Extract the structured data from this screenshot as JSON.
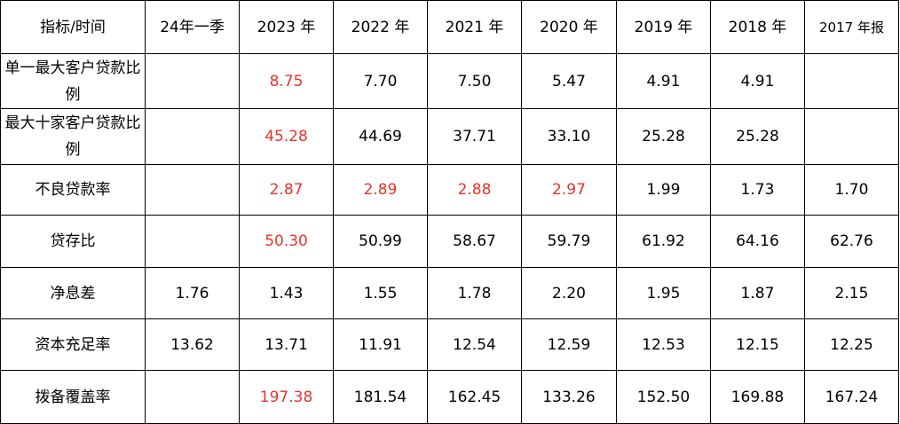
{
  "headers": [
    "指标/时间",
    "24年一季",
    "2023 年",
    "2022 年",
    "2021 年",
    "2020 年",
    "2019 年",
    "2018 年",
    "2017 年报"
  ],
  "colors": {
    "highlight": "#e8332b",
    "text": "#000000",
    "border": "#000000"
  },
  "rows": [
    {
      "label": "单一最大客户贷款比例",
      "cells": [
        {
          "v": "",
          "hl": false
        },
        {
          "v": "8.75",
          "hl": true
        },
        {
          "v": "7.70",
          "hl": false
        },
        {
          "v": "7.50",
          "hl": false
        },
        {
          "v": "5.47",
          "hl": false
        },
        {
          "v": "4.91",
          "hl": false
        },
        {
          "v": "4.91",
          "hl": false
        },
        {
          "v": "",
          "hl": false
        }
      ]
    },
    {
      "label": "最大十家客户贷款比例",
      "cells": [
        {
          "v": "",
          "hl": false
        },
        {
          "v": "45.28",
          "hl": true
        },
        {
          "v": "44.69",
          "hl": false
        },
        {
          "v": "37.71",
          "hl": false
        },
        {
          "v": "33.10",
          "hl": false
        },
        {
          "v": "25.28",
          "hl": false
        },
        {
          "v": "25.28",
          "hl": false
        },
        {
          "v": "",
          "hl": false
        }
      ]
    },
    {
      "label": "不良贷款率",
      "cells": [
        {
          "v": "",
          "hl": false
        },
        {
          "v": "2.87",
          "hl": true
        },
        {
          "v": "2.89",
          "hl": true
        },
        {
          "v": "2.88",
          "hl": true
        },
        {
          "v": "2.97",
          "hl": true
        },
        {
          "v": "1.99",
          "hl": false
        },
        {
          "v": "1.73",
          "hl": false
        },
        {
          "v": "1.70",
          "hl": false
        }
      ]
    },
    {
      "label": "贷存比",
      "cells": [
        {
          "v": "",
          "hl": false
        },
        {
          "v": "50.30",
          "hl": true
        },
        {
          "v": "50.99",
          "hl": false
        },
        {
          "v": "58.67",
          "hl": false
        },
        {
          "v": "59.79",
          "hl": false
        },
        {
          "v": "61.92",
          "hl": false
        },
        {
          "v": "64.16",
          "hl": false
        },
        {
          "v": "62.76",
          "hl": false
        }
      ]
    },
    {
      "label": "净息差",
      "cells": [
        {
          "v": "1.76",
          "hl": false
        },
        {
          "v": "1.43",
          "hl": false
        },
        {
          "v": "1.55",
          "hl": false
        },
        {
          "v": "1.78",
          "hl": false
        },
        {
          "v": "2.20",
          "hl": false
        },
        {
          "v": "1.95",
          "hl": false
        },
        {
          "v": "1.87",
          "hl": false
        },
        {
          "v": "2.15",
          "hl": false
        }
      ]
    },
    {
      "label": "资本充足率",
      "cells": [
        {
          "v": "13.62",
          "hl": false
        },
        {
          "v": "13.71",
          "hl": false
        },
        {
          "v": "11.91",
          "hl": false
        },
        {
          "v": "12.54",
          "hl": false
        },
        {
          "v": "12.59",
          "hl": false
        },
        {
          "v": "12.53",
          "hl": false
        },
        {
          "v": "12.15",
          "hl": false
        },
        {
          "v": "12.25",
          "hl": false
        }
      ]
    },
    {
      "label": "拨备覆盖率",
      "cells": [
        {
          "v": "",
          "hl": false
        },
        {
          "v": "197.38",
          "hl": true
        },
        {
          "v": "181.54",
          "hl": false
        },
        {
          "v": "162.45",
          "hl": false
        },
        {
          "v": "133.26",
          "hl": false
        },
        {
          "v": "152.50",
          "hl": false
        },
        {
          "v": "169.88",
          "hl": false
        },
        {
          "v": "167.24",
          "hl": false
        }
      ]
    }
  ]
}
